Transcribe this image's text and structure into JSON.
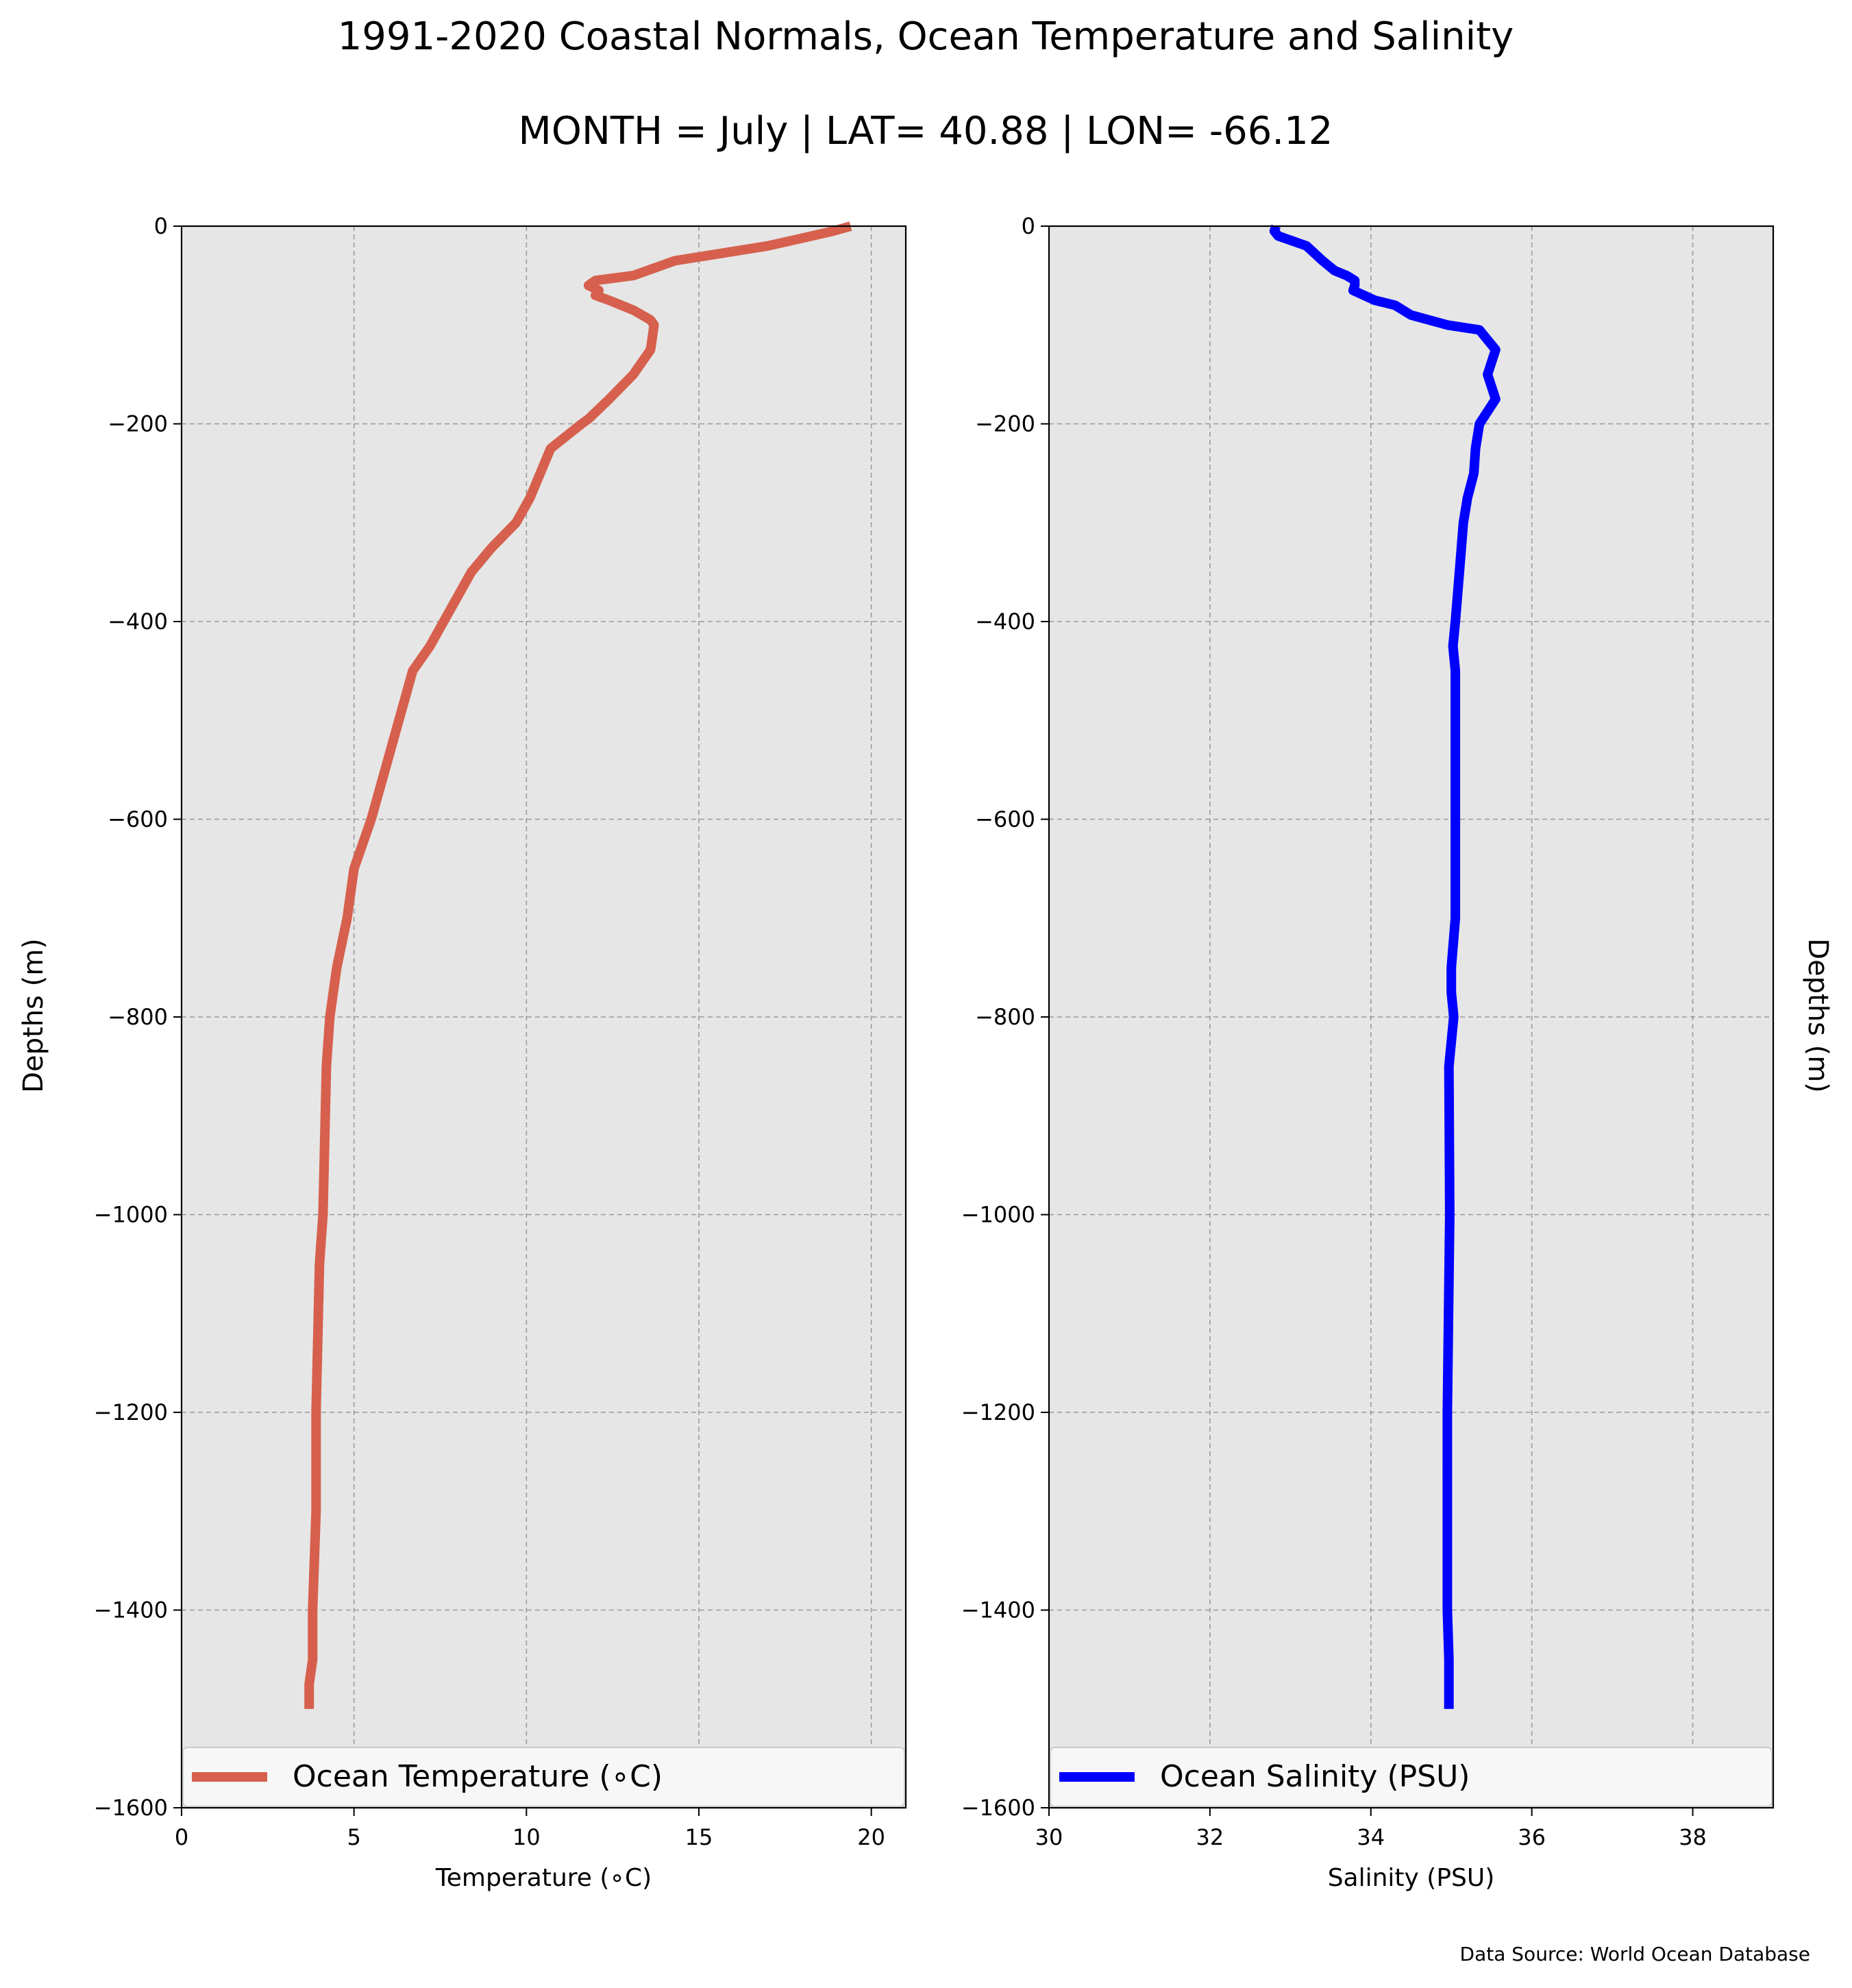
{
  "figure": {
    "title": "1991-2020 Coastal Normals, Ocean Temperature and Salinity",
    "subtitle": "MONTH = July | LAT= 40.88 | LON= -66.12",
    "source_note": "Data Source: World Ocean Database"
  },
  "chart_data": [
    {
      "type": "line",
      "title": "",
      "xlabel": "Temperature (∘C)",
      "ylabel": "Depths (m)",
      "xlim": [
        0,
        21
      ],
      "ylim": [
        -1600,
        0
      ],
      "xticks": [
        "0",
        "5",
        "10",
        "15",
        "20"
      ],
      "yticks": [
        "0",
        "−200",
        "−400",
        "−600",
        "−800",
        "−1000",
        "−1200",
        "−1400",
        "−1600"
      ],
      "grid": true,
      "legend": "lower center",
      "series": [
        {
          "name": "Ocean Temperature (∘C)",
          "color": "#d6604d",
          "x": [
            19.4,
            18.9,
            17.0,
            15.2,
            14.3,
            13.1,
            12.0,
            11.8,
            12.1,
            12.0,
            12.4,
            13.1,
            13.6,
            13.7,
            13.6,
            13.1,
            12.4,
            11.8,
            11.6,
            10.7,
            10.1,
            9.7,
            9.0,
            8.4,
            7.6,
            7.2,
            6.7,
            6.5,
            6.3,
            5.9,
            5.5,
            5.0,
            4.8,
            4.5,
            4.3,
            4.2,
            4.1,
            4.0,
            3.9,
            3.9,
            3.8,
            3.8,
            3.7,
            3.7
          ],
          "y": [
            0,
            -5,
            -20,
            -30,
            -35,
            -50,
            -55,
            -60,
            -65,
            -70,
            -75,
            -85,
            -95,
            -100,
            -125,
            -150,
            -175,
            -195,
            -200,
            -225,
            -275,
            -300,
            -325,
            -350,
            -400,
            -425,
            -450,
            -475,
            -500,
            -550,
            -600,
            -650,
            -700,
            -750,
            -800,
            -850,
            -1000,
            -1050,
            -1200,
            -1300,
            -1400,
            -1450,
            -1475,
            -1500
          ]
        }
      ]
    },
    {
      "type": "line",
      "title": "",
      "xlabel": "Salinity (PSU)",
      "ylabel": "Depths (m)",
      "xlim": [
        30,
        39
      ],
      "ylim": [
        -1600,
        0
      ],
      "xticks": [
        "30",
        "32",
        "34",
        "36",
        "38"
      ],
      "yticks": [
        "0",
        "−200",
        "−400",
        "−600",
        "−800",
        "−1000",
        "−1200",
        "−1400",
        "−1600"
      ],
      "grid": true,
      "legend": "lower center",
      "series": [
        {
          "name": "Ocean Salinity (PSU)",
          "color": "#0000ff",
          "x": [
            32.82,
            32.8,
            32.85,
            33.2,
            33.4,
            33.55,
            33.7,
            33.8,
            33.8,
            33.78,
            34.05,
            34.3,
            34.5,
            34.95,
            35.35,
            35.55,
            35.45,
            35.55,
            35.35,
            35.3,
            35.28,
            35.2,
            35.15,
            35.1,
            35.05,
            35.02,
            35.05,
            35.05,
            35.05,
            35.05,
            35.05,
            35.0,
            35.0,
            35.03,
            34.97,
            34.98,
            34.95,
            34.95,
            34.95,
            34.97,
            34.97
          ],
          "y": [
            0,
            -5,
            -10,
            -20,
            -35,
            -45,
            -50,
            -55,
            -60,
            -65,
            -75,
            -80,
            -90,
            -100,
            -105,
            -125,
            -150,
            -175,
            -200,
            -225,
            -250,
            -275,
            -300,
            -350,
            -400,
            -425,
            -450,
            -475,
            -500,
            -600,
            -700,
            -750,
            -775,
            -800,
            -850,
            -1000,
            -1200,
            -1300,
            -1400,
            -1450,
            -1500
          ]
        }
      ]
    }
  ]
}
